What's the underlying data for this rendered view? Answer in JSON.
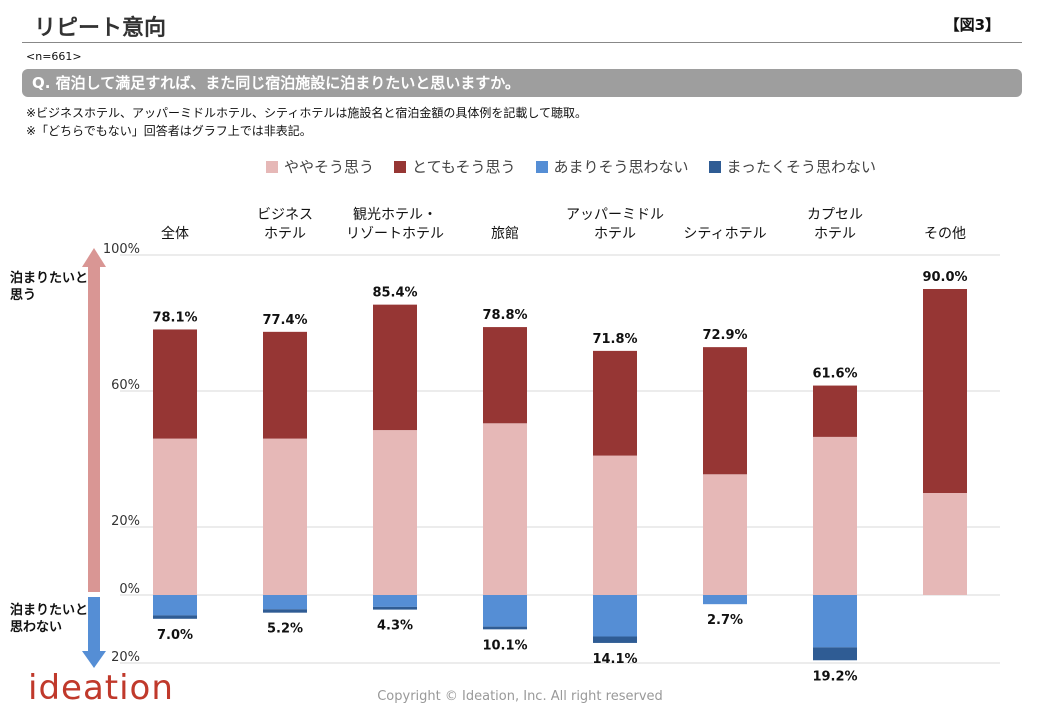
{
  "header": {
    "title": "リピート意向",
    "figure_no": "【図3】"
  },
  "sample": "<n=661>",
  "question": "Q. 宿泊して満足すれば、また同じ宿泊施設に泊まりたいと思いますか。",
  "notes": [
    "※ビジネスホテル、アッパーミドルホテル、シティホテルは施設名と宿泊金額の具体例を記載して聴取。",
    "※「どちらでもない」回答者はグラフ上では非表記。"
  ],
  "side": {
    "top_label_1": "泊まりたいと",
    "top_label_2": "思う",
    "bottom_label_1": "泊まりたいと",
    "bottom_label_2": "思わない"
  },
  "footer": {
    "copyright": "Copyright © Ideation, Inc. All right reserved",
    "logo": "ideation"
  },
  "colors": {
    "yaya": "#e6b8b7",
    "totemo": "#963634",
    "amari": "#558ed5",
    "mattaku": "#2f5c94",
    "arrow_up": "#d99694",
    "arrow_down": "#558ed5"
  },
  "chart_data": {
    "type": "bar",
    "stacked": true,
    "categories": [
      [
        "全体"
      ],
      [
        "ビジネス",
        "ホテル"
      ],
      [
        "観光ホテル・",
        "リゾートホテル"
      ],
      [
        "旅館"
      ],
      [
        "アッパーミドル",
        "ホテル"
      ],
      [
        "シティホテル"
      ],
      [
        "カプセル",
        "ホテル"
      ],
      [
        "その他"
      ]
    ],
    "series": [
      {
        "name": "ややそう思う",
        "color_key": "yaya",
        "values": [
          46.0,
          46.0,
          48.5,
          50.5,
          41.0,
          35.5,
          46.5,
          30.0
        ]
      },
      {
        "name": "とてもそう思う",
        "color_key": "totemo",
        "values": [
          32.1,
          31.4,
          36.9,
          28.3,
          30.8,
          37.4,
          15.1,
          60.0
        ]
      },
      {
        "name": "あまりそう思わない",
        "color_key": "amari",
        "values": [
          -6.0,
          -4.2,
          -3.5,
          -9.3,
          -12.2,
          -2.7,
          -15.4,
          0
        ]
      },
      {
        "name": "まったくそう思わない",
        "color_key": "mattaku",
        "values": [
          -1.0,
          -1.0,
          -0.8,
          -0.8,
          -1.9,
          0,
          -3.8,
          0
        ]
      }
    ],
    "positive_totals": [
      "78.1%",
      "77.4%",
      "85.4%",
      "78.8%",
      "71.8%",
      "72.9%",
      "61.6%",
      "90.0%"
    ],
    "negative_totals": [
      "7.0%",
      "5.2%",
      "4.3%",
      "10.1%",
      "14.1%",
      "2.7%",
      "19.2%",
      ""
    ],
    "y_ticks": [
      {
        "value": 100,
        "label": "100%"
      },
      {
        "value": 60,
        "label": "60%"
      },
      {
        "value": 20,
        "label": "20%"
      },
      {
        "value": 0,
        "label": "0%"
      },
      {
        "value": -20,
        "label": "20%"
      }
    ],
    "ylim": [
      -20,
      100
    ],
    "grid": true,
    "legend": "top"
  }
}
